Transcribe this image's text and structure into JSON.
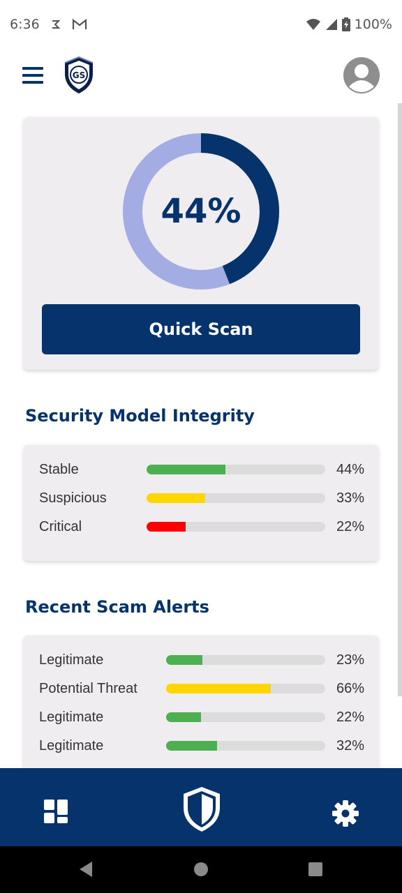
{
  "status_bar": {
    "time": "6:36",
    "battery": "100%"
  },
  "header": {
    "logo_text": "GS"
  },
  "scan": {
    "percent_label": "44%",
    "progress": 0.44,
    "button_label": "Quick Scan",
    "colors": {
      "fill": "#06336b",
      "track": "#a3ade4"
    }
  },
  "integrity": {
    "title": "Security Model Integrity",
    "rows": [
      {
        "label": "Stable",
        "value_label": "44%",
        "value": 0.44,
        "color": "#4caf50"
      },
      {
        "label": "Suspicious",
        "value_label": "33%",
        "value": 0.33,
        "color": "#ffd600"
      },
      {
        "label": "Critical",
        "value_label": "22%",
        "value": 0.22,
        "color": "#ff0000"
      }
    ]
  },
  "alerts": {
    "title": "Recent Scam Alerts",
    "rows": [
      {
        "label": "Legitimate",
        "value_label": "23%",
        "value": 0.23,
        "color": "#4caf50"
      },
      {
        "label": "Potential Threat",
        "value_label": "66%",
        "value": 0.66,
        "color": "#ffd600"
      },
      {
        "label": "Legitimate",
        "value_label": "22%",
        "value": 0.22,
        "color": "#4caf50"
      },
      {
        "label": "Legitimate",
        "value_label": "32%",
        "value": 0.32,
        "color": "#4caf50"
      }
    ]
  },
  "bottom_nav": {
    "items": [
      {
        "icon": "dashboard-icon"
      },
      {
        "icon": "shield-icon"
      },
      {
        "icon": "gear-icon"
      }
    ]
  },
  "system_nav": {
    "items": [
      {
        "icon": "back-icon"
      },
      {
        "icon": "home-icon"
      },
      {
        "icon": "recents-icon"
      }
    ]
  }
}
